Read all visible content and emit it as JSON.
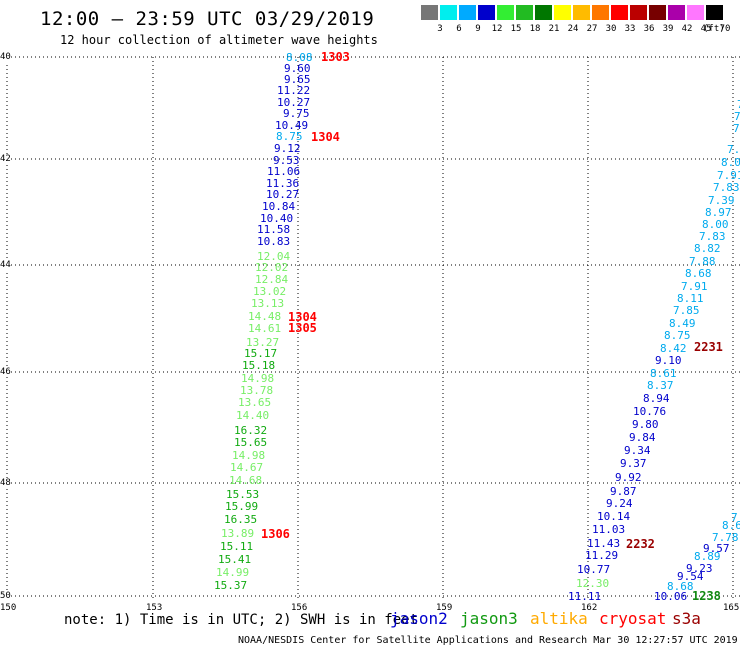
{
  "title": "12:00 — 23:59 UTC 03/29/2019",
  "subtitle": "12 hour collection of altimeter wave heights",
  "legend": {
    "colors": [
      "#777777",
      "#00eeee",
      "#00aaff",
      "#0000cc",
      "#33ee33",
      "#22bb22",
      "#007700",
      "#ffff00",
      "#ffbb00",
      "#ff7700",
      "#ff0000",
      "#bb0000",
      "#770000",
      "#aa00aa",
      "#ff77ff",
      "#000000"
    ],
    "labels": [
      "",
      "3",
      "6",
      "9",
      "12",
      "15",
      "18",
      "21",
      "24",
      "27",
      "30",
      "33",
      "36",
      "39",
      "42",
      "45",
      "70"
    ],
    "unit": "(ft)"
  },
  "colors": {
    "dblue": "#0000cc",
    "lblue": "#00aaee",
    "lgreen": "#77ee66",
    "green": "#11aa11",
    "red": "#ff0000",
    "dred": "#990000",
    "dgreen": "#118811"
  },
  "y_labels": [
    "40",
    "42",
    "44",
    "46",
    "48",
    "50"
  ],
  "x_labels": [
    "150",
    "153",
    "156",
    "159",
    "162",
    "165"
  ],
  "tracks": [
    {
      "color": "lblue",
      "v": "8.08"
    },
    {
      "color": "dblue",
      "v": "9.60"
    },
    {
      "color": "dblue",
      "v": "9.65"
    },
    {
      "color": "dblue",
      "v": "11.22"
    },
    {
      "color": "dblue",
      "v": "10.27"
    },
    {
      "color": "dblue",
      "v": "9.75"
    },
    {
      "color": "dblue",
      "v": "10.49"
    },
    {
      "color": "lblue",
      "v": "8.75"
    },
    {
      "color": "dblue",
      "v": "9.12"
    },
    {
      "color": "dblue",
      "v": "9.53"
    },
    {
      "color": "dblue",
      "v": "11.06"
    },
    {
      "color": "dblue",
      "v": "11.36"
    },
    {
      "color": "dblue",
      "v": "10.27"
    },
    {
      "color": "dblue",
      "v": "10.84"
    },
    {
      "color": "dblue",
      "v": "10.40"
    },
    {
      "color": "dblue",
      "v": "11.58"
    },
    {
      "color": "dblue",
      "v": "10.83"
    },
    {
      "color": "lgreen",
      "v": "12.04"
    },
    {
      "color": "lgreen",
      "v": "12.02"
    },
    {
      "color": "lgreen",
      "v": "12.84"
    },
    {
      "color": "lgreen",
      "v": "13.02"
    },
    {
      "color": "lgreen",
      "v": "13.13"
    },
    {
      "color": "lgreen",
      "v": "14.48"
    },
    {
      "color": "lgreen",
      "v": "14.61"
    },
    {
      "color": "lgreen",
      "v": "13.27"
    },
    {
      "color": "green",
      "v": "15.17"
    },
    {
      "color": "green",
      "v": "15.18"
    },
    {
      "color": "lgreen",
      "v": "14.98"
    },
    {
      "color": "lgreen",
      "v": "13.78"
    },
    {
      "color": "lgreen",
      "v": "13.65"
    },
    {
      "color": "lgreen",
      "v": "14.40"
    },
    {
      "color": "green",
      "v": "16.32"
    },
    {
      "color": "green",
      "v": "15.65"
    },
    {
      "color": "lgreen",
      "v": "14.98"
    },
    {
      "color": "lgreen",
      "v": "14.67"
    },
    {
      "color": "lgreen",
      "v": "14.68"
    },
    {
      "color": "green",
      "v": "15.53"
    },
    {
      "color": "green",
      "v": "15.99"
    },
    {
      "color": "green",
      "v": "16.35"
    },
    {
      "color": "lgreen",
      "v": "13.89"
    },
    {
      "color": "green",
      "v": "15.11"
    },
    {
      "color": "green",
      "v": "15.41"
    },
    {
      "color": "lgreen",
      "v": "14.99"
    },
    {
      "color": "green",
      "v": "15.37"
    },
    {
      "color": "lblue",
      "v": "7."
    },
    {
      "color": "lblue",
      "v": "7.3"
    },
    {
      "color": "lblue",
      "v": "8.0"
    },
    {
      "color": "lblue",
      "v": "7.91"
    },
    {
      "color": "lblue",
      "v": "7.83"
    },
    {
      "color": "lblue",
      "v": "7.39"
    },
    {
      "color": "lblue",
      "v": "8.97"
    },
    {
      "color": "lblue",
      "v": "8.00"
    },
    {
      "color": "lblue",
      "v": "7.83"
    },
    {
      "color": "lblue",
      "v": "8.82"
    },
    {
      "color": "lblue",
      "v": "7.88"
    },
    {
      "color": "lblue",
      "v": "8.68"
    },
    {
      "color": "lblue",
      "v": "7.91"
    },
    {
      "color": "lblue",
      "v": "8.11"
    },
    {
      "color": "lblue",
      "v": "7.85"
    },
    {
      "color": "lblue",
      "v": "8.49"
    },
    {
      "color": "lblue",
      "v": "8.75"
    },
    {
      "color": "lblue",
      "v": "8.42"
    },
    {
      "color": "dblue",
      "v": "9.10"
    },
    {
      "color": "lblue",
      "v": "8.61"
    },
    {
      "color": "lblue",
      "v": "8.37"
    },
    {
      "color": "dblue",
      "v": "8.94"
    },
    {
      "color": "dblue",
      "v": "10.76"
    },
    {
      "color": "dblue",
      "v": "9.80"
    },
    {
      "color": "dblue",
      "v": "9.84"
    },
    {
      "color": "dblue",
      "v": "9.34"
    },
    {
      "color": "dblue",
      "v": "9.37"
    },
    {
      "color": "dblue",
      "v": "9.92"
    },
    {
      "color": "dblue",
      "v": "9.87"
    },
    {
      "color": "dblue",
      "v": "9.24"
    },
    {
      "color": "dblue",
      "v": "10.14"
    },
    {
      "color": "dblue",
      "v": "11.03"
    },
    {
      "color": "dblue",
      "v": "11.43"
    },
    {
      "color": "dblue",
      "v": "11.29"
    },
    {
      "color": "dblue",
      "v": "10.77"
    },
    {
      "color": "lgreen",
      "v": "12.30"
    },
    {
      "color": "dblue",
      "v": "11.11"
    },
    {
      "color": "lblue",
      "v": "7."
    },
    {
      "color": "lblue",
      "v": "8.6"
    },
    {
      "color": "lblue",
      "v": "7.78"
    },
    {
      "color": "dblue",
      "v": "9.57"
    },
    {
      "color": "lblue",
      "v": "8.89"
    },
    {
      "color": "dblue",
      "v": "9.23"
    },
    {
      "color": "dblue",
      "v": "9.54"
    },
    {
      "color": "lblue",
      "v": "8.68"
    },
    {
      "color": "dblue",
      "v": "10.06"
    },
    {
      "color": "lblue",
      "v": "7"
    },
    {
      "color": "lblue",
      "v": "7."
    }
  ],
  "times": [
    {
      "color": "red",
      "v": "1303"
    },
    {
      "color": "red",
      "v": "1304"
    },
    {
      "color": "red",
      "v": "1304"
    },
    {
      "color": "red",
      "v": "1305"
    },
    {
      "color": "red",
      "v": "1306"
    },
    {
      "color": "dred",
      "v": "2231"
    },
    {
      "color": "dred",
      "v": "2232"
    },
    {
      "color": "dgreen",
      "v": "1238"
    }
  ],
  "note": "note: 1) Time is in UTC; 2) SWH is in feet",
  "satellites": [
    {
      "name": "jason2",
      "color": "#0000cc"
    },
    {
      "name": "jason3",
      "color": "#119911"
    },
    {
      "name": "altika",
      "color": "#ffaa00"
    },
    {
      "name": "cryosat",
      "color": "#ff0000"
    },
    {
      "name": "s3a",
      "color": "#990000"
    }
  ],
  "credit": "NOAA/NESDIS Center for Satellite Applications and Research   Mar 30 12:27:57 UTC 2019"
}
